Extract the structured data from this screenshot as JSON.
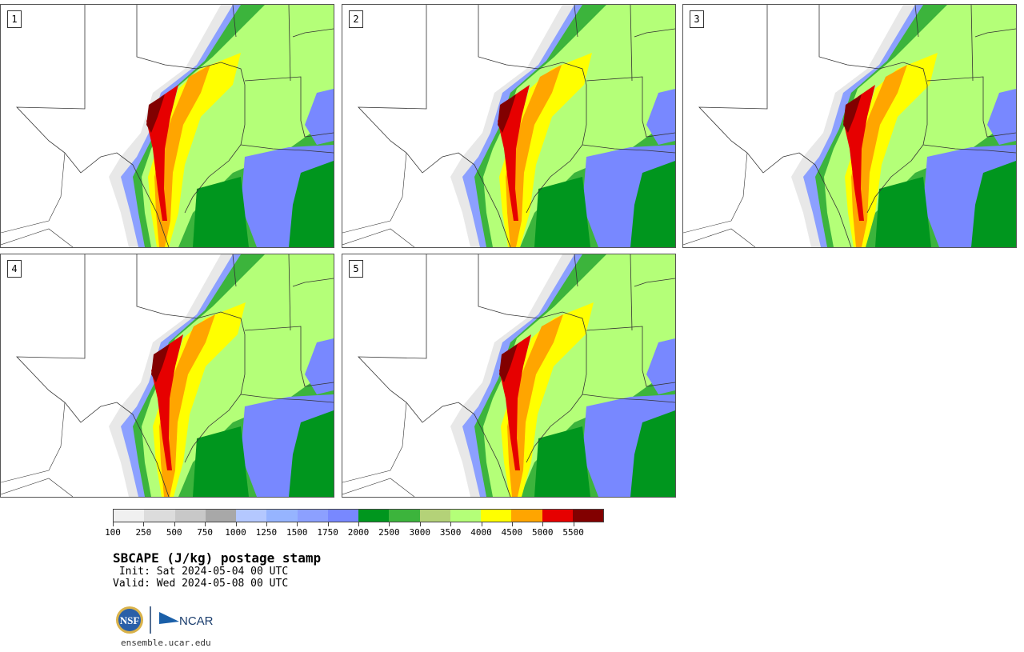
{
  "panels": [
    {
      "label": "1"
    },
    {
      "label": "2"
    },
    {
      "label": "3"
    },
    {
      "label": "4"
    },
    {
      "label": "5"
    }
  ],
  "colorbar": {
    "colors": [
      "#f0f0f0",
      "#dcdcdc",
      "#c8c8c8",
      "#a8a8a8",
      "#b4c8ff",
      "#96b4ff",
      "#8ca0ff",
      "#7888ff",
      "#00961e",
      "#3cb43c",
      "#b4d278",
      "#b4ff78",
      "#ffff00",
      "#ffa500",
      "#e60000",
      "#820000"
    ],
    "tick_labels": [
      "100",
      "250",
      "500",
      "750",
      "1000",
      "1250",
      "1500",
      "1750",
      "2000",
      "2500",
      "3000",
      "3500",
      "4000",
      "4500",
      "5000",
      "5500"
    ]
  },
  "title": "SBCAPE (J/kg) postage stamp",
  "init": " Init: Sat 2024-05-04 00 UTC",
  "valid": "Valid: Wed 2024-05-08 00 UTC",
  "logos": {
    "nsf": "NSF",
    "ncar": "NCAR"
  },
  "website": "ensemble.ucar.edu"
}
